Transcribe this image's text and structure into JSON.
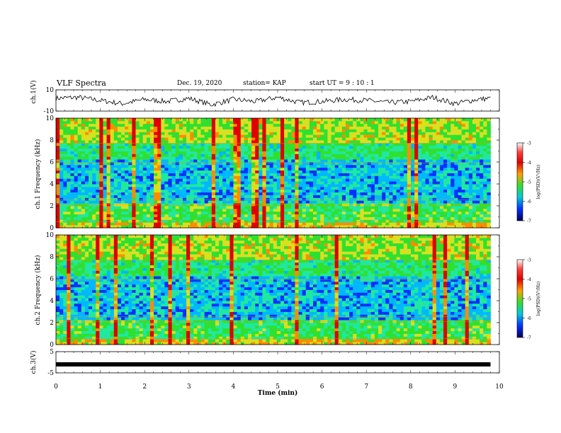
{
  "header": {
    "title": "VLF Spectra",
    "date": "Dec. 19, 2020",
    "station": "station= KAP",
    "start": "start  UT =   9 : 10 : 1"
  },
  "chart_data": [
    {
      "type": "line",
      "panel": "ch1_waveform",
      "ylabel": "ch.1(V)",
      "ylim": [
        -10,
        10
      ],
      "yticks": [
        "10",
        "-10"
      ],
      "x": [
        0,
        0.5,
        1,
        1.5,
        2,
        2.5,
        3,
        3.5,
        4,
        4.5,
        5,
        5.5,
        6,
        6.5,
        7,
        7.5,
        8,
        8.5,
        9,
        9.5,
        9.8
      ],
      "values": [
        2,
        3,
        0,
        -3,
        1,
        -1,
        2,
        -4,
        1,
        -1,
        3,
        -2,
        -1,
        1,
        0,
        -2,
        -1,
        3,
        -3,
        1,
        2
      ]
    },
    {
      "type": "heatmap",
      "panel": "ch1_spectrogram",
      "ylabel": "ch.1 Frequency (kHz)",
      "ylim": [
        0,
        10
      ],
      "yticks": [
        "0",
        "2",
        "4",
        "6",
        "8",
        "10"
      ],
      "colorbar": {
        "label": "log(PSD)(V²/Hz)",
        "range": [
          -7,
          -3
        ],
        "ticks": [
          "-3",
          "-4",
          "-5",
          "-6",
          "-7"
        ]
      }
    },
    {
      "type": "heatmap",
      "panel": "ch2_spectrogram",
      "ylabel": "ch.2 Frequency (kHz)",
      "ylim": [
        0,
        10
      ],
      "yticks": [
        "0",
        "2",
        "4",
        "6",
        "8",
        "10"
      ],
      "colorbar": {
        "label": "log(PSD)(V²/Hz)",
        "range": [
          -7,
          -3
        ],
        "ticks": [
          "-3",
          "-4",
          "-5",
          "-6",
          "-7"
        ]
      }
    },
    {
      "type": "line",
      "panel": "ch3_waveform",
      "ylabel": "ch.3(V)",
      "ylim": [
        -5,
        5
      ],
      "yticks": [
        "5",
        "-5"
      ],
      "x": [
        0,
        9.8
      ],
      "values": [
        -1,
        -1
      ]
    }
  ],
  "xaxis": {
    "label": "Time (min)",
    "xlim": [
      0,
      10
    ],
    "ticks": [
      "0",
      "1",
      "2",
      "3",
      "4",
      "5",
      "6",
      "7",
      "8",
      "9",
      "10"
    ]
  },
  "colors": {
    "trace": "#000000",
    "cmap": [
      "#00008f",
      "#0030ff",
      "#00b8ff",
      "#20e8a0",
      "#30e030",
      "#d8e020",
      "#ff8c00",
      "#e00000"
    ]
  }
}
